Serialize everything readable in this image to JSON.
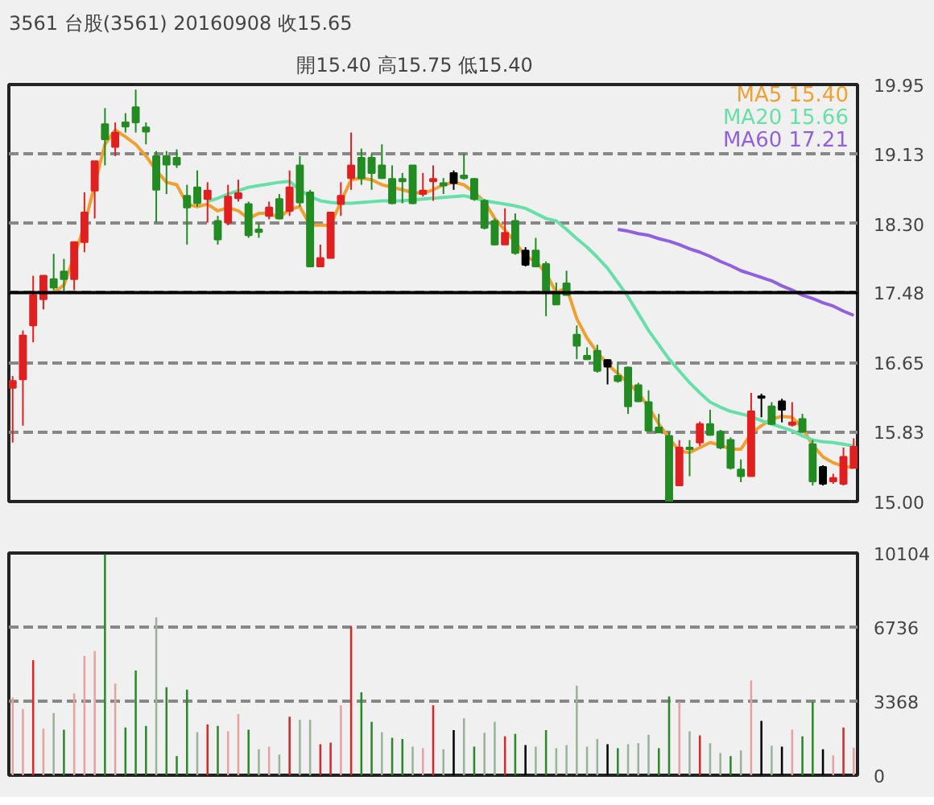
{
  "chart_data": [
    {
      "type": "candlestick",
      "title": "3561  台股(3561) 20160908   收15.65",
      "subtitle": "開15.40    高15.75    低15.40",
      "categories": [
        null,
        null,
        null,
        null,
        null,
        null,
        null,
        null,
        null,
        null,
        null,
        null,
        null,
        null,
        null,
        null,
        null,
        null,
        null,
        null,
        null,
        null,
        null,
        null,
        null,
        null,
        null,
        null,
        null,
        null,
        null,
        null,
        null,
        null,
        null,
        null,
        null,
        null,
        null,
        null,
        null,
        null,
        null,
        null,
        null,
        null,
        null,
        null,
        null,
        null,
        null,
        null,
        null,
        null,
        null,
        null,
        null,
        null,
        null,
        null,
        null,
        null,
        null,
        null,
        null,
        null,
        null,
        null,
        null,
        null,
        null,
        null,
        null,
        null,
        null,
        null,
        null,
        null,
        null,
        null,
        null,
        null,
        null
      ],
      "ohlc": [
        [
          16.35,
          16.49,
          15.7,
          16.43
        ],
        [
          16.45,
          17.03,
          15.9,
          16.97
        ],
        [
          17.09,
          17.68,
          16.89,
          17.45
        ],
        [
          17.4,
          17.68,
          17.28,
          17.68
        ],
        [
          17.64,
          17.94,
          17.51,
          17.54
        ],
        [
          17.73,
          17.88,
          17.48,
          17.64
        ],
        [
          17.64,
          18.08,
          17.51,
          18.08
        ],
        [
          18.08,
          18.67,
          17.96,
          18.43
        ],
        [
          18.69,
          19.04,
          18.36,
          19.04
        ],
        [
          19.48,
          19.67,
          18.99,
          19.3
        ],
        [
          19.21,
          19.5,
          19.1,
          19.38
        ],
        [
          19.5,
          19.61,
          19.38,
          19.45
        ],
        [
          19.68,
          19.89,
          19.38,
          19.5
        ],
        [
          19.44,
          19.5,
          19.24,
          19.39
        ],
        [
          19.1,
          19.16,
          18.31,
          18.7
        ],
        [
          19.1,
          19.16,
          18.65,
          19.0
        ],
        [
          19.08,
          19.18,
          18.96,
          19.0
        ],
        [
          18.63,
          18.76,
          18.05,
          18.49
        ],
        [
          18.73,
          18.93,
          18.5,
          18.54
        ],
        [
          18.59,
          18.79,
          18.31,
          18.69
        ],
        [
          18.33,
          18.39,
          18.05,
          18.11
        ],
        [
          18.31,
          18.76,
          18.28,
          18.62
        ],
        [
          18.6,
          18.82,
          18.56,
          18.66
        ],
        [
          18.53,
          18.56,
          18.13,
          18.16
        ],
        [
          18.23,
          18.31,
          18.13,
          18.2
        ],
        [
          18.39,
          18.56,
          18.35,
          18.49
        ],
        [
          18.59,
          18.65,
          18.35,
          18.36
        ],
        [
          18.45,
          18.93,
          18.39,
          18.73
        ],
        [
          18.99,
          19.1,
          18.5,
          18.55
        ],
        [
          18.67,
          18.7,
          17.79,
          17.79
        ],
        [
          17.79,
          18.05,
          17.79,
          17.89
        ],
        [
          17.89,
          18.43,
          17.89,
          18.43
        ],
        [
          18.53,
          18.79,
          18.39,
          18.63
        ],
        [
          18.84,
          19.38,
          18.7,
          18.99
        ],
        [
          19.08,
          19.19,
          18.76,
          18.84
        ],
        [
          19.08,
          19.13,
          18.7,
          18.9
        ],
        [
          18.99,
          19.24,
          18.83,
          18.84
        ],
        [
          18.83,
          18.99,
          18.53,
          18.54
        ],
        [
          18.83,
          18.9,
          18.54,
          18.8
        ],
        [
          18.99,
          18.99,
          18.53,
          18.54
        ],
        [
          18.65,
          18.9,
          18.62,
          18.69
        ],
        [
          18.8,
          18.99,
          18.57,
          18.83
        ],
        [
          18.78,
          18.84,
          18.65,
          18.75
        ],
        [
          18.78,
          18.93,
          18.7,
          18.9
        ],
        [
          18.87,
          19.13,
          18.82,
          18.84
        ],
        [
          18.83,
          18.84,
          18.57,
          18.59
        ],
        [
          18.57,
          18.59,
          18.23,
          18.25
        ],
        [
          18.33,
          18.36,
          18.04,
          18.05
        ],
        [
          18.05,
          18.48,
          18.05,
          18.19
        ],
        [
          18.33,
          18.42,
          17.93,
          17.95
        ],
        [
          17.98,
          18.02,
          17.79,
          17.81
        ],
        [
          17.98,
          18.13,
          17.78,
          17.79
        ],
        [
          17.82,
          17.85,
          17.2,
          17.48
        ],
        [
          17.48,
          17.6,
          17.34,
          17.34
        ],
        [
          17.59,
          17.74,
          17.45,
          17.45
        ],
        [
          16.98,
          17.09,
          16.69,
          16.85
        ],
        [
          16.73,
          16.83,
          16.68,
          16.69
        ],
        [
          16.79,
          16.86,
          16.53,
          16.55
        ],
        [
          16.68,
          16.69,
          16.39,
          16.6
        ],
        [
          16.49,
          16.66,
          16.41,
          16.43
        ],
        [
          16.59,
          16.6,
          16.04,
          16.13
        ],
        [
          16.38,
          16.41,
          16.18,
          16.19
        ],
        [
          16.18,
          16.32,
          15.83,
          15.84
        ],
        [
          15.88,
          16.04,
          15.82,
          15.82
        ],
        [
          15.78,
          15.82,
          15.0,
          15.0
        ],
        [
          15.19,
          15.73,
          15.19,
          15.64
        ],
        [
          15.64,
          15.73,
          15.3,
          15.62
        ],
        [
          15.7,
          15.95,
          15.66,
          15.92
        ],
        [
          15.92,
          16.09,
          15.78,
          15.79
        ],
        [
          15.83,
          15.85,
          15.62,
          15.64
        ],
        [
          15.73,
          15.76,
          15.38,
          15.4
        ],
        [
          15.38,
          15.5,
          15.23,
          15.3
        ],
        [
          15.3,
          16.29,
          15.3,
          16.07
        ],
        [
          16.25,
          16.28,
          16.0,
          16.23
        ],
        [
          16.13,
          16.18,
          15.91,
          15.92
        ],
        [
          16.19,
          16.22,
          15.94,
          16.09
        ],
        [
          15.91,
          16.18,
          15.89,
          15.94
        ],
        [
          15.98,
          16.04,
          15.81,
          15.83
        ],
        [
          15.68,
          15.73,
          15.19,
          15.24
        ],
        [
          15.41,
          15.43,
          15.19,
          15.21
        ],
        [
          15.24,
          15.33,
          15.21,
          15.28
        ],
        [
          15.21,
          15.64,
          15.19,
          15.53
        ],
        [
          15.4,
          15.75,
          15.4,
          15.65
        ]
      ],
      "colors": [
        "#e02020",
        "#e02020",
        "#e02020",
        "#e02020",
        "#228b22",
        "#228b22",
        "#e02020",
        "#e02020",
        "#e02020",
        "#228b22",
        "#e02020",
        "#228b22",
        "#228b22",
        "#228b22",
        "#228b22",
        "#228b22",
        "#228b22",
        "#228b22",
        "#228b22",
        "#e02020",
        "#228b22",
        "#e02020",
        "#e02020",
        "#228b22",
        "#228b22",
        "#e02020",
        "#228b22",
        "#e02020",
        "#228b22",
        "#228b22",
        "#e02020",
        "#e02020",
        "#e02020",
        "#e02020",
        "#228b22",
        "#228b22",
        "#228b22",
        "#228b22",
        "#228b22",
        "#228b22",
        "#e02020",
        "#e02020",
        "#228b22",
        "#000000",
        "#228b22",
        "#228b22",
        "#228b22",
        "#228b22",
        "#e02020",
        "#228b22",
        "#000000",
        "#228b22",
        "#228b22",
        "#228b22",
        "#228b22",
        "#228b22",
        "#228b22",
        "#228b22",
        "#000000",
        "#228b22",
        "#228b22",
        "#228b22",
        "#228b22",
        "#228b22",
        "#228b22",
        "#e02020",
        "#228b22",
        "#e02020",
        "#228b22",
        "#228b22",
        "#228b22",
        "#228b22",
        "#e02020",
        "#000000",
        "#228b22",
        "#000000",
        "#e02020",
        "#228b22",
        "#228b22",
        "#000000",
        "#e02020",
        "#e02020",
        "#e02020"
      ],
      "series": [
        {
          "name": "MA5 15.40",
          "type": "line",
          "color": "#f0a030",
          "values": [
            null,
            null,
            null,
            null,
            17.48,
            17.57,
            17.91,
            18.28,
            null,
            19.24,
            19.41,
            19.33,
            19.24,
            19.1,
            18.93,
            18.79,
            18.76,
            18.53,
            18.5,
            18.53,
            18.45,
            18.49,
            18.45,
            18.36,
            18.42,
            18.42,
            18.37,
            18.47,
            18.5,
            18.28,
            18.28,
            18.28,
            18.56,
            18.82,
            18.84,
            18.82,
            18.76,
            18.73,
            18.7,
            18.67,
            18.66,
            18.7,
            18.76,
            18.79,
            18.76,
            18.67,
            18.56,
            18.36,
            18.22,
            18.08,
            17.91,
            17.85,
            17.71,
            17.48,
            17.54,
            17.17,
            16.94,
            16.77,
            16.63,
            16.52,
            16.41,
            16.29,
            16.12,
            15.92,
            15.75,
            15.6,
            15.58,
            15.64,
            15.7,
            15.67,
            15.62,
            15.62,
            15.81,
            15.9,
            15.98,
            16.01,
            16.0,
            15.87,
            15.67,
            15.53,
            15.46,
            15.42,
            15.4
          ]
        },
        {
          "name": "MA20 15.66",
          "type": "line",
          "color": "#66e0a8",
          "values": [
            null,
            null,
            null,
            null,
            null,
            null,
            null,
            null,
            null,
            null,
            null,
            null,
            null,
            null,
            null,
            null,
            null,
            null,
            null,
            18.56,
            18.6,
            18.65,
            18.69,
            18.73,
            18.75,
            18.77,
            18.79,
            18.8,
            18.7,
            18.62,
            18.57,
            18.55,
            18.54,
            18.54,
            18.55,
            18.56,
            18.57,
            18.57,
            18.57,
            18.58,
            18.59,
            18.6,
            18.61,
            18.62,
            18.63,
            18.6,
            18.57,
            18.55,
            18.53,
            18.51,
            18.48,
            18.42,
            18.36,
            18.33,
            18.23,
            18.12,
            18.02,
            17.9,
            17.77,
            17.6,
            17.43,
            17.23,
            17.03,
            16.86,
            16.69,
            16.55,
            16.41,
            16.29,
            16.18,
            16.12,
            16.07,
            16.04,
            16.01,
            15.96,
            15.92,
            15.88,
            15.84,
            15.78,
            15.73,
            15.71,
            15.7,
            15.68,
            15.66
          ]
        },
        {
          "name": "MA60 17.21",
          "type": "line",
          "color": "#9060e0",
          "values": [
            null,
            null,
            null,
            null,
            null,
            null,
            null,
            null,
            null,
            null,
            null,
            null,
            null,
            null,
            null,
            null,
            null,
            null,
            null,
            null,
            null,
            null,
            null,
            null,
            null,
            null,
            null,
            null,
            null,
            null,
            null,
            null,
            null,
            null,
            null,
            null,
            null,
            null,
            null,
            null,
            null,
            null,
            null,
            null,
            null,
            null,
            null,
            null,
            null,
            null,
            null,
            null,
            null,
            null,
            null,
            null,
            null,
            null,
            null,
            18.23,
            18.21,
            18.18,
            18.16,
            18.12,
            18.09,
            18.05,
            18.0,
            17.96,
            17.91,
            17.85,
            17.8,
            17.74,
            17.7,
            17.66,
            17.62,
            17.56,
            17.51,
            17.45,
            17.41,
            17.36,
            17.32,
            17.26,
            17.21
          ]
        }
      ],
      "ylim": [
        15.0,
        19.95
      ],
      "yticks": [
        {
          "value": 15.0,
          "label": "15.00"
        },
        {
          "value": 15.83,
          "label": "15.83"
        },
        {
          "value": 16.65,
          "label": "16.65"
        },
        {
          "value": 17.48,
          "label": "17.48"
        },
        {
          "value": 18.3,
          "label": "18.30"
        },
        {
          "value": 19.13,
          "label": "19.13"
        },
        {
          "value": 19.95,
          "label": "19.95"
        }
      ],
      "ref_lines": [
        {
          "axis": "y",
          "value": 17.48,
          "color": "#000000",
          "line_style": "solid"
        }
      ],
      "grid": "y",
      "legend": "top right",
      "tick_labels": "y"
    },
    {
      "type": "bar",
      "categories": [
        null,
        null,
        null,
        null,
        null,
        null,
        null,
        null,
        null,
        null,
        null,
        null,
        null,
        null,
        null,
        null,
        null,
        null,
        null,
        null,
        null,
        null,
        null,
        null,
        null,
        null,
        null,
        null,
        null,
        null,
        null,
        null,
        null,
        null,
        null,
        null,
        null,
        null,
        null,
        null,
        null,
        null,
        null,
        null,
        null,
        null,
        null,
        null,
        null,
        null,
        null,
        null,
        null,
        null,
        null,
        null,
        null,
        null,
        null,
        null,
        null,
        null,
        null,
        null,
        null,
        null,
        null,
        null,
        null,
        null,
        null,
        null,
        null,
        null,
        null,
        null,
        null,
        null,
        null,
        null,
        null,
        null,
        null
      ],
      "values": [
        3530,
        3010,
        5230,
        2120,
        2830,
        2070,
        3720,
        5420,
        5650,
        10050,
        4170,
        2170,
        4760,
        2240,
        7180,
        4000,
        870,
        3890,
        1960,
        2310,
        2240,
        2000,
        2780,
        2070,
        1180,
        1300,
        940,
        2660,
        2520,
        2520,
        1410,
        1480,
        3180,
        6760,
        3770,
        2430,
        1960,
        1700,
        1650,
        1300,
        1230,
        3180,
        1180,
        2050,
        2590,
        1300,
        1930,
        2430,
        1770,
        1880,
        1370,
        1300,
        2050,
        1230,
        1370,
        4070,
        1300,
        1650,
        1410,
        1230,
        1410,
        1460,
        1840,
        1230,
        3580,
        3340,
        2000,
        1810,
        1460,
        1010,
        870,
        1130,
        4310,
        2470,
        1340,
        1300,
        2070,
        1770,
        3340,
        1180,
        900,
        2170,
        1250
      ],
      "colors": [
        "#e8a0a0",
        "#e8a0a0",
        "#d42a2a",
        "#e8a0a0",
        "#98b498",
        "#2a8a2a",
        "#e8a0a0",
        "#e8a0a0",
        "#e8a0a0",
        "#2a8a2a",
        "#e8a0a0",
        "#2a8a2a",
        "#2a8a2a",
        "#2a8a2a",
        "#98b498",
        "#2a8a2a",
        "#2a8a2a",
        "#2a8a2a",
        "#98b498",
        "#d42a2a",
        "#2a8a2a",
        "#e8a0a0",
        "#e8a0a0",
        "#2a8a2a",
        "#98b498",
        "#e8a0a0",
        "#98b498",
        "#d42a2a",
        "#98b498",
        "#98b498",
        "#d42a2a",
        "#d42a2a",
        "#e8a0a0",
        "#d42a2a",
        "#2a8a2a",
        "#2a8a2a",
        "#98b498",
        "#2a8a2a",
        "#2a8a2a",
        "#98b498",
        "#e8a0a0",
        "#d42a2a",
        "#98b498",
        "#000000",
        "#98b498",
        "#2a8a2a",
        "#98b498",
        "#98b498",
        "#d42a2a",
        "#2a8a2a",
        "#000000",
        "#98b498",
        "#2a8a2a",
        "#98b498",
        "#98b498",
        "#98b498",
        "#98b498",
        "#98b498",
        "#000000",
        "#2a8a2a",
        "#98b498",
        "#98b498",
        "#98b498",
        "#2a8a2a",
        "#2a8a2a",
        "#e8a0a0",
        "#98b498",
        "#d42a2a",
        "#98b498",
        "#98b498",
        "#2a8a2a",
        "#98b498",
        "#e8a0a0",
        "#000000",
        "#98b498",
        "#000000",
        "#e8a0a0",
        "#2a8a2a",
        "#2a8a2a",
        "#000000",
        "#e8a0a0",
        "#d42a2a",
        "#e8a0a0"
      ],
      "ylim": [
        0,
        10104
      ],
      "yticks": [
        0,
        3368,
        6736,
        10104
      ],
      "grid": "y",
      "tick_labels": "y"
    }
  ]
}
